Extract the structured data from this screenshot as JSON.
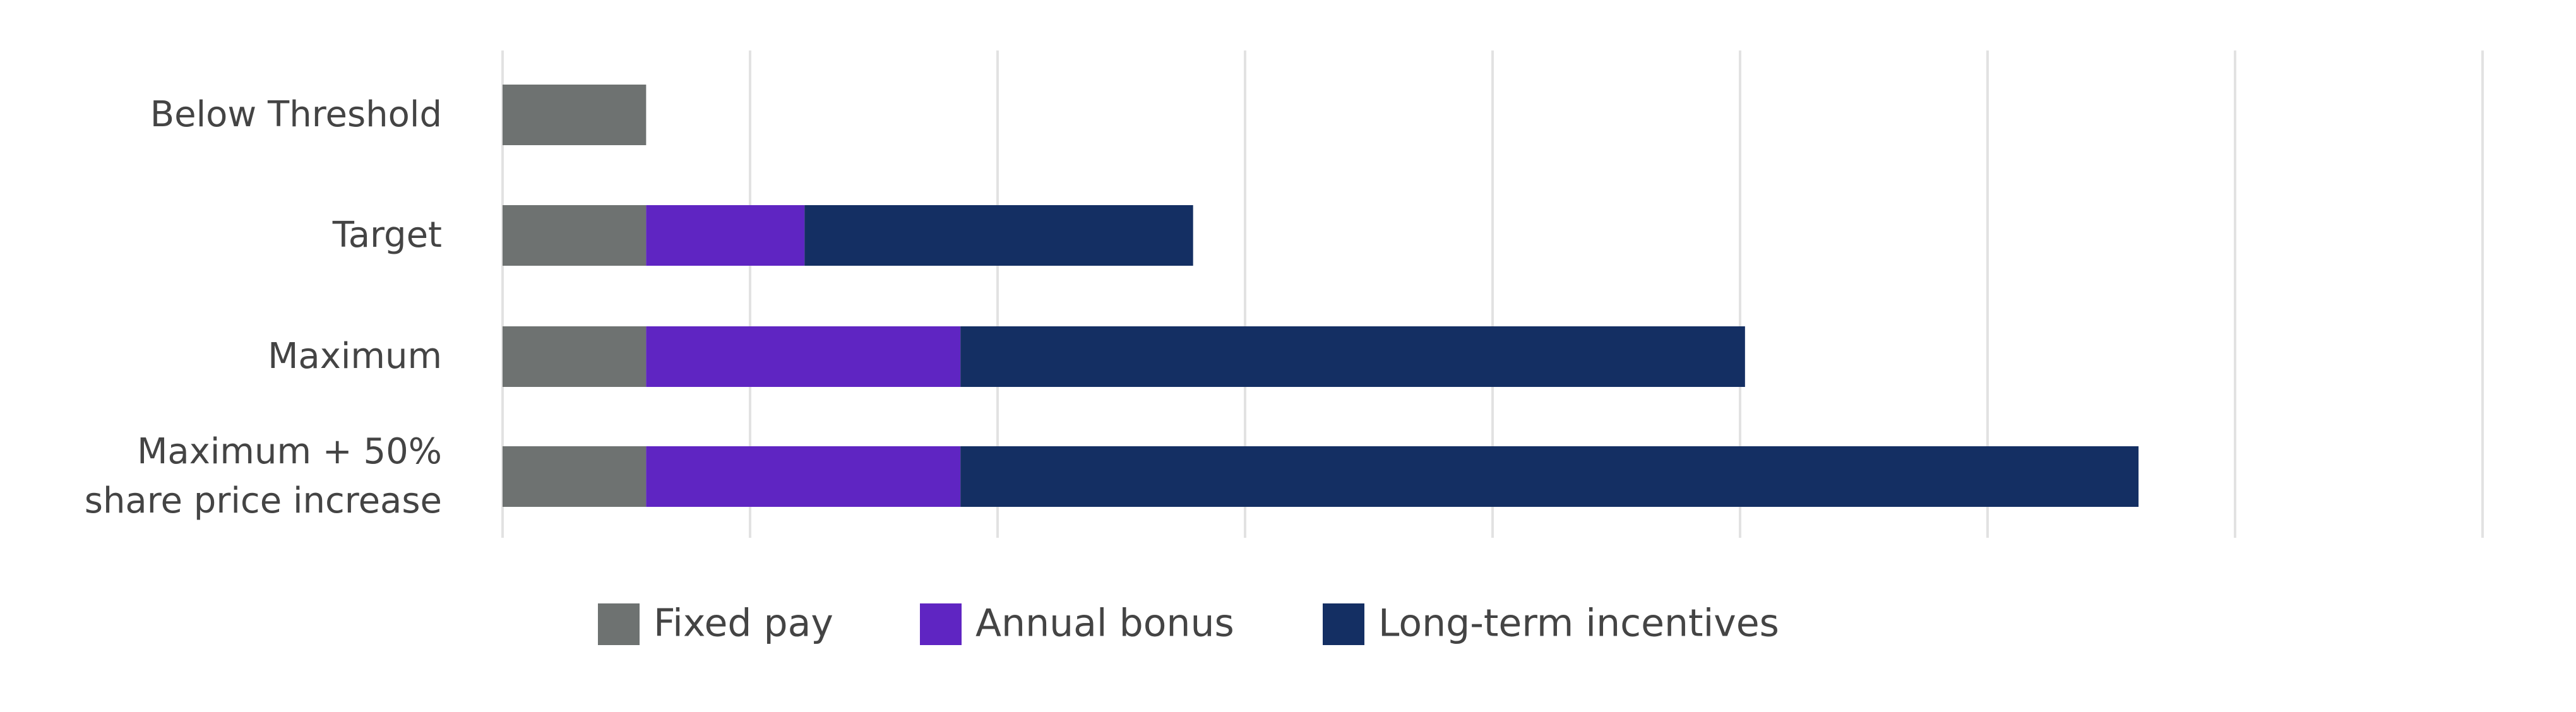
{
  "chart_data": {
    "type": "stacked-bar-horizontal",
    "categories": [
      "Below Threshold",
      "Target",
      "Maximum",
      "Maximum + 50%\nshare price increase"
    ],
    "series": [
      {
        "name": "Fixed pay",
        "color": "#6e7271",
        "values": [
          0.58,
          0.58,
          0.58,
          0.58
        ]
      },
      {
        "name": "Annual bonus",
        "color": "#5f25c2",
        "values": [
          0,
          0.64,
          1.27,
          1.27
        ]
      },
      {
        "name": "Long-term incentives",
        "color": "#142f63",
        "values": [
          0,
          1.57,
          3.17,
          4.76
        ]
      }
    ],
    "xlim": [
      0,
      8
    ],
    "xticks": [
      0,
      1,
      2,
      3,
      4,
      5,
      6,
      7,
      8
    ],
    "grid": true,
    "legend": "bottom"
  }
}
